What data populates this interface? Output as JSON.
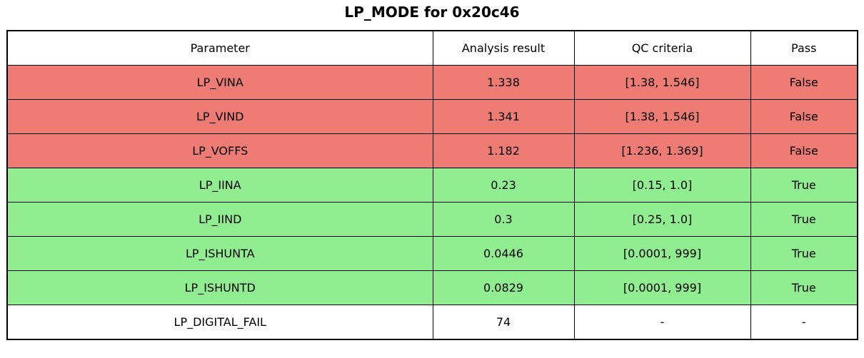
{
  "chart_data": {
    "type": "table",
    "title": "LP_MODE for 0x20c46",
    "columns": [
      "Parameter",
      "Analysis result",
      "QC criteria",
      "Pass"
    ],
    "rows": [
      {
        "parameter": "LP_VINA",
        "result": "1.338",
        "criteria": "[1.38, 1.546]",
        "pass": "False",
        "status": "fail"
      },
      {
        "parameter": "LP_VIND",
        "result": "1.341",
        "criteria": "[1.38, 1.546]",
        "pass": "False",
        "status": "fail"
      },
      {
        "parameter": "LP_VOFFS",
        "result": "1.182",
        "criteria": "[1.236, 1.369]",
        "pass": "False",
        "status": "fail"
      },
      {
        "parameter": "LP_IINA",
        "result": "0.23",
        "criteria": "[0.15, 1.0]",
        "pass": "True",
        "status": "pass"
      },
      {
        "parameter": "LP_IIND",
        "result": "0.3",
        "criteria": "[0.25, 1.0]",
        "pass": "True",
        "status": "pass"
      },
      {
        "parameter": "LP_ISHUNTA",
        "result": "0.0446",
        "criteria": "[0.0001, 999]",
        "pass": "True",
        "status": "pass"
      },
      {
        "parameter": "LP_ISHUNTD",
        "result": "0.0829",
        "criteria": "[0.0001, 999]",
        "pass": "True",
        "status": "pass"
      },
      {
        "parameter": "LP_DIGITAL_FAIL",
        "result": "74",
        "criteria": "-",
        "pass": "-",
        "status": "neutral"
      }
    ],
    "row_colors": {
      "fail": "#ee7b74",
      "pass": "#90ee90",
      "neutral": "#ffffff"
    },
    "layout": {
      "grid": true,
      "header_background": "#ffffff",
      "border_color": "#000000"
    }
  }
}
